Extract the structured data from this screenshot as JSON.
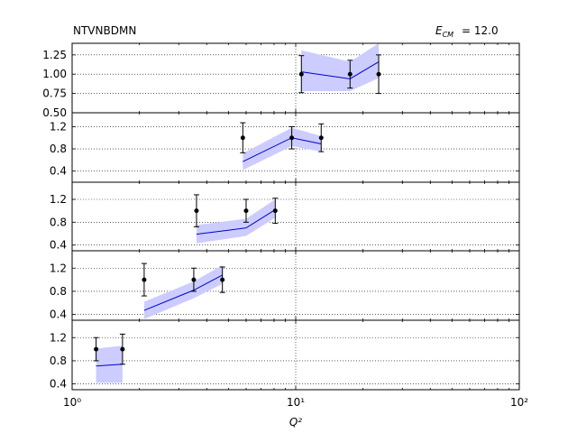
{
  "header": {
    "title": "NTVNBDMN",
    "energy_label": "= 12.0"
  },
  "chart_data": {
    "type": "line",
    "xlabel": "Q²",
    "xscale": "log",
    "xlim": [
      1,
      100
    ],
    "x_tick_labels": [
      "10⁰",
      "10¹",
      "10²"
    ],
    "grid": true,
    "panels": [
      {
        "ylim": [
          0.5,
          1.4
        ],
        "yticks": [
          0.5,
          0.75,
          1.0,
          1.25
        ],
        "ytick_labels": [
          "0.50",
          "0.75",
          "1.00",
          "1.25"
        ],
        "data_points": [
          {
            "x": 10.6,
            "y": 1.0,
            "yerr_low": 0.24,
            "yerr_high": 0.24
          },
          {
            "x": 17.5,
            "y": 1.0,
            "yerr_low": 0.18,
            "yerr_high": 0.18
          },
          {
            "x": 23.5,
            "y": 1.0,
            "yerr_low": 0.25,
            "yerr_high": 0.25
          }
        ],
        "model": {
          "x": [
            10.6,
            17.5,
            23.5
          ],
          "y": [
            1.03,
            0.94,
            1.16
          ]
        },
        "band": {
          "x": [
            10.6,
            17.5,
            23.5
          ],
          "low": [
            0.78,
            0.78,
            0.95
          ],
          "high": [
            1.31,
            1.16,
            1.4
          ]
        }
      },
      {
        "ylim": [
          0.2,
          1.45
        ],
        "yticks": [
          0.4,
          0.8,
          1.2
        ],
        "ytick_labels": [
          "0.4",
          "0.8",
          "1.2"
        ],
        "data_points": [
          {
            "x": 5.8,
            "y": 1.0,
            "yerr_low": 0.27,
            "yerr_high": 0.27
          },
          {
            "x": 9.6,
            "y": 1.0,
            "yerr_low": 0.2,
            "yerr_high": 0.2
          },
          {
            "x": 13.0,
            "y": 1.0,
            "yerr_low": 0.25,
            "yerr_high": 0.25
          }
        ],
        "model": {
          "x": [
            5.8,
            9.6,
            13.0
          ],
          "y": [
            0.57,
            1.0,
            0.89
          ]
        },
        "band": {
          "x": [
            5.8,
            9.6,
            13.0
          ],
          "low": [
            0.42,
            0.85,
            0.75
          ],
          "high": [
            0.72,
            1.18,
            1.03
          ]
        }
      },
      {
        "ylim": [
          0.3,
          1.5
        ],
        "yticks": [
          0.4,
          0.8,
          1.2
        ],
        "ytick_labels": [
          "0.4",
          "0.8",
          "1.2"
        ],
        "data_points": [
          {
            "x": 3.6,
            "y": 1.0,
            "yerr_low": 0.28,
            "yerr_high": 0.28
          },
          {
            "x": 6.0,
            "y": 1.0,
            "yerr_low": 0.2,
            "yerr_high": 0.2
          },
          {
            "x": 8.1,
            "y": 1.0,
            "yerr_low": 0.22,
            "yerr_high": 0.22
          }
        ],
        "model": {
          "x": [
            3.6,
            6.0,
            8.1
          ],
          "y": [
            0.59,
            0.7,
            1.02
          ]
        },
        "band": {
          "x": [
            3.6,
            6.0,
            8.1
          ],
          "low": [
            0.43,
            0.56,
            0.88
          ],
          "high": [
            0.75,
            0.86,
            1.2
          ]
        }
      },
      {
        "ylim": [
          0.3,
          1.5
        ],
        "yticks": [
          0.4,
          0.8,
          1.2
        ],
        "ytick_labels": [
          "0.4",
          "0.8",
          "1.2"
        ],
        "data_points": [
          {
            "x": 2.1,
            "y": 1.0,
            "yerr_low": 0.28,
            "yerr_high": 0.28
          },
          {
            "x": 3.5,
            "y": 1.0,
            "yerr_low": 0.2,
            "yerr_high": 0.2
          },
          {
            "x": 4.7,
            "y": 1.0,
            "yerr_low": 0.22,
            "yerr_high": 0.22
          }
        ],
        "model": {
          "x": [
            2.1,
            3.5,
            4.7
          ],
          "y": [
            0.47,
            0.82,
            1.08
          ]
        },
        "band": {
          "x": [
            2.1,
            3.5,
            4.7
          ],
          "low": [
            0.32,
            0.68,
            0.93
          ],
          "high": [
            0.62,
            0.97,
            1.25
          ]
        }
      },
      {
        "ylim": [
          0.3,
          1.5
        ],
        "yticks": [
          0.4,
          0.8,
          1.2
        ],
        "ytick_labels": [
          "0.4",
          "0.8",
          "1.2"
        ],
        "data_points": [
          {
            "x": 1.28,
            "y": 1.0,
            "yerr_low": 0.2,
            "yerr_high": 0.2
          },
          {
            "x": 1.68,
            "y": 1.0,
            "yerr_low": 0.26,
            "yerr_high": 0.26
          }
        ],
        "model": {
          "x": [
            1.28,
            1.68
          ],
          "y": [
            0.71,
            0.74
          ]
        },
        "band": {
          "x": [
            1.28,
            1.68
          ],
          "low": [
            0.42,
            0.42
          ],
          "high": [
            1.01,
            1.06
          ]
        }
      }
    ],
    "colors": {
      "band": "#ccccff",
      "model_line": "#0000cc",
      "points": "#000000"
    }
  }
}
